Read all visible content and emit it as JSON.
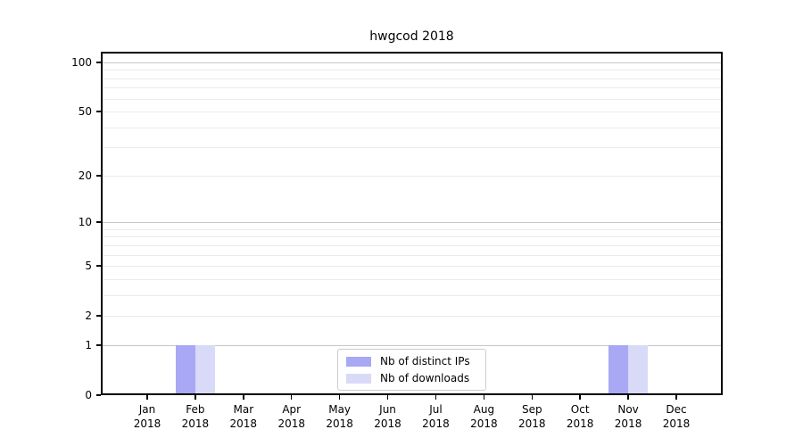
{
  "chart_data": {
    "type": "bar",
    "title": "hwgcod 2018",
    "scale": "log1p",
    "ylim": [
      0,
      116
    ],
    "grid": "horizontal",
    "legend_position": "lower center",
    "xlabel": "",
    "ylabel": "",
    "y_ticks": [
      {
        "value": 100,
        "label": "100"
      },
      {
        "value": 50,
        "label": "50"
      },
      {
        "value": 20,
        "label": "20"
      },
      {
        "value": 10,
        "label": "10"
      },
      {
        "value": 5,
        "label": "5"
      },
      {
        "value": 2,
        "label": "2"
      },
      {
        "value": 1,
        "label": "1"
      },
      {
        "value": 0,
        "label": "0"
      }
    ],
    "y_major_gridlines": [
      1,
      10,
      100
    ],
    "y_minor_gridlines": [
      2,
      3,
      4,
      5,
      6,
      7,
      8,
      9,
      20,
      30,
      40,
      50,
      60,
      70,
      80,
      90
    ],
    "categories": [
      {
        "month": "Jan",
        "year": "2018"
      },
      {
        "month": "Feb",
        "year": "2018"
      },
      {
        "month": "Mar",
        "year": "2018"
      },
      {
        "month": "Apr",
        "year": "2018"
      },
      {
        "month": "May",
        "year": "2018"
      },
      {
        "month": "Jun",
        "year": "2018"
      },
      {
        "month": "Jul",
        "year": "2018"
      },
      {
        "month": "Aug",
        "year": "2018"
      },
      {
        "month": "Sep",
        "year": "2018"
      },
      {
        "month": "Oct",
        "year": "2018"
      },
      {
        "month": "Nov",
        "year": "2018"
      },
      {
        "month": "Dec",
        "year": "2018"
      }
    ],
    "series": [
      {
        "name": "Nb of distinct IPs",
        "color": "#a8a8f4",
        "values": [
          0,
          1,
          0,
          0,
          0,
          0,
          0,
          0,
          0,
          0,
          1,
          0
        ]
      },
      {
        "name": "Nb of downloads",
        "color": "#d9d9f8",
        "values": [
          0,
          1,
          0,
          0,
          0,
          0,
          0,
          0,
          0,
          0,
          1,
          0
        ]
      }
    ]
  },
  "colors": {
    "major_grid": "#c8c8c8",
    "minor_grid": "#ebebeb",
    "spine": "#000000",
    "background": "#ffffff"
  }
}
